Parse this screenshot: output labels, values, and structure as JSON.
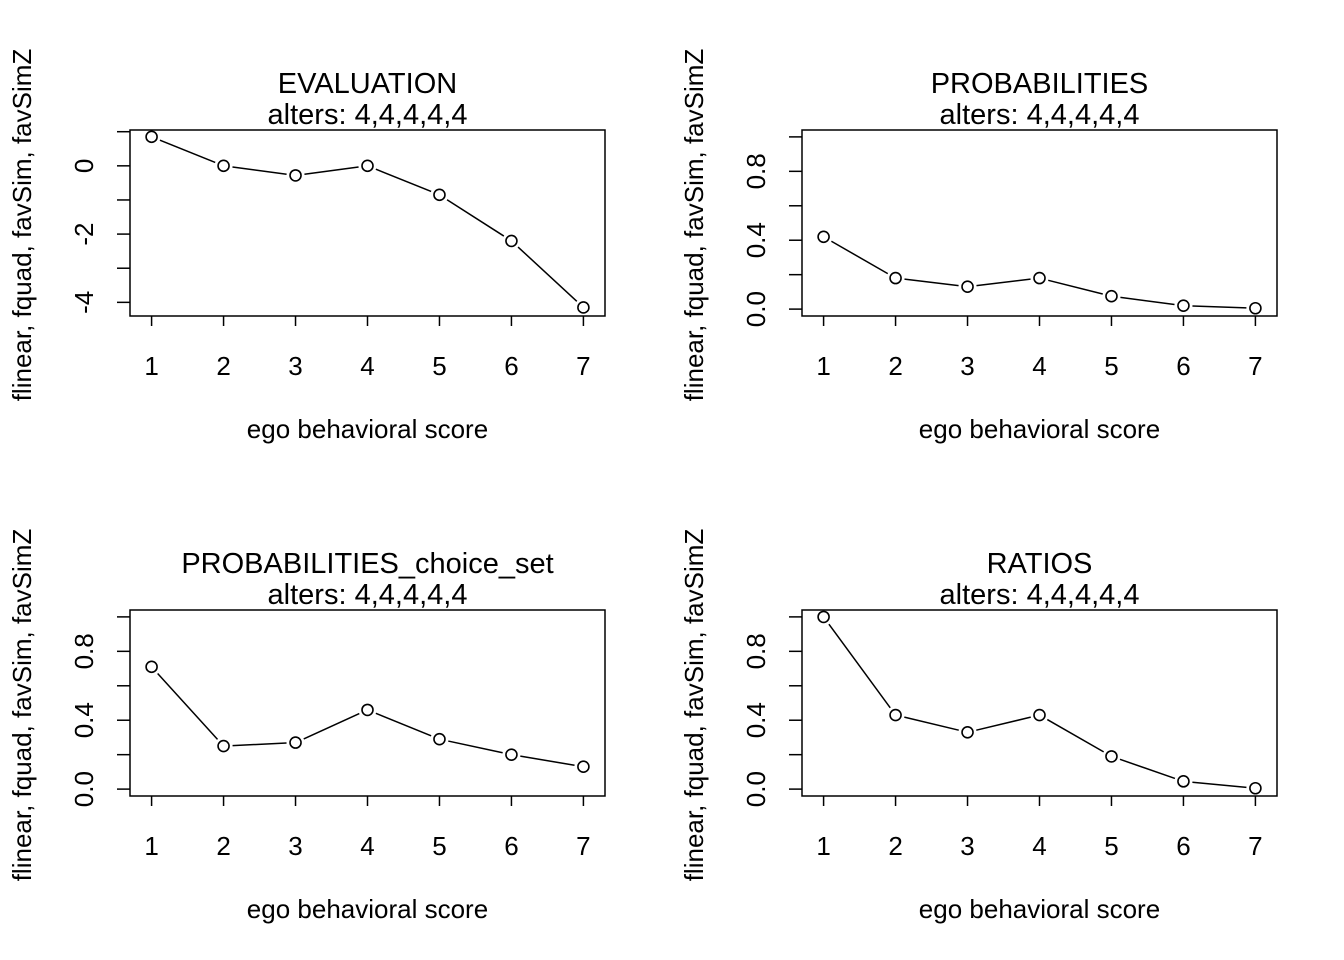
{
  "chart_data": [
    {
      "type": "line",
      "title": "EVALUATION",
      "subtitle": "alters: 4,4,4,4,4",
      "xlabel": "ego behavioral score",
      "ylabel": "flinear, fquad, favSim, favSimZ",
      "x": [
        1,
        2,
        3,
        4,
        5,
        6,
        7
      ],
      "values": [
        0.85,
        0.0,
        -0.28,
        0.0,
        -0.85,
        -2.2,
        -4.15
      ],
      "xlim": [
        0.7,
        7.3
      ],
      "ylim": [
        -4.4,
        1.05
      ],
      "xticks": [
        "1",
        "2",
        "3",
        "4",
        "5",
        "6",
        "7"
      ],
      "yticks": [
        {
          "v": 0,
          "label": "0"
        },
        {
          "v": -2,
          "label": "-2"
        },
        {
          "v": -4,
          "label": "-4"
        }
      ],
      "yminor": [
        1,
        -1,
        -3
      ],
      "grid": false
    },
    {
      "type": "line",
      "title": "PROBABILITIES",
      "subtitle": "alters: 4,4,4,4,4",
      "xlabel": "ego behavioral score",
      "ylabel": "flinear, fquad, favSim, favSimZ",
      "x": [
        1,
        2,
        3,
        4,
        5,
        6,
        7
      ],
      "values": [
        0.42,
        0.18,
        0.13,
        0.18,
        0.075,
        0.02,
        0.005
      ],
      "xlim": [
        0.7,
        7.3
      ],
      "ylim": [
        -0.04,
        1.04
      ],
      "xticks": [
        "1",
        "2",
        "3",
        "4",
        "5",
        "6",
        "7"
      ],
      "yticks": [
        {
          "v": 0,
          "label": "0.0"
        },
        {
          "v": 0.4,
          "label": "0.4"
        },
        {
          "v": 0.8,
          "label": "0.8"
        }
      ],
      "yminor": [
        0.2,
        0.6,
        1.0
      ],
      "grid": false
    },
    {
      "type": "line",
      "title": "PROBABILITIES_choice_set",
      "subtitle": "alters: 4,4,4,4,4",
      "xlabel": "ego behavioral score",
      "ylabel": "flinear, fquad, favSim, favSimZ",
      "x": [
        1,
        2,
        3,
        4,
        5,
        6,
        7
      ],
      "values": [
        0.71,
        0.25,
        0.27,
        0.46,
        0.29,
        0.2,
        0.13
      ],
      "xlim": [
        0.7,
        7.3
      ],
      "ylim": [
        -0.04,
        1.04
      ],
      "xticks": [
        "1",
        "2",
        "3",
        "4",
        "5",
        "6",
        "7"
      ],
      "yticks": [
        {
          "v": 0,
          "label": "0.0"
        },
        {
          "v": 0.4,
          "label": "0.4"
        },
        {
          "v": 0.8,
          "label": "0.8"
        }
      ],
      "yminor": [
        0.2,
        0.6,
        1.0
      ],
      "grid": false
    },
    {
      "type": "line",
      "title": "RATIOS",
      "subtitle": "alters: 4,4,4,4,4",
      "xlabel": "ego behavioral score",
      "ylabel": "flinear, fquad, favSim, favSimZ",
      "x": [
        1,
        2,
        3,
        4,
        5,
        6,
        7
      ],
      "values": [
        1.0,
        0.43,
        0.33,
        0.43,
        0.19,
        0.045,
        0.005
      ],
      "xlim": [
        0.7,
        7.3
      ],
      "ylim": [
        -0.04,
        1.04
      ],
      "xticks": [
        "1",
        "2",
        "3",
        "4",
        "5",
        "6",
        "7"
      ],
      "yticks": [
        {
          "v": 0,
          "label": "0.0"
        },
        {
          "v": 0.4,
          "label": "0.4"
        },
        {
          "v": 0.8,
          "label": "0.8"
        }
      ],
      "yminor": [
        0.2,
        0.6,
        1.0
      ],
      "grid": false
    }
  ]
}
